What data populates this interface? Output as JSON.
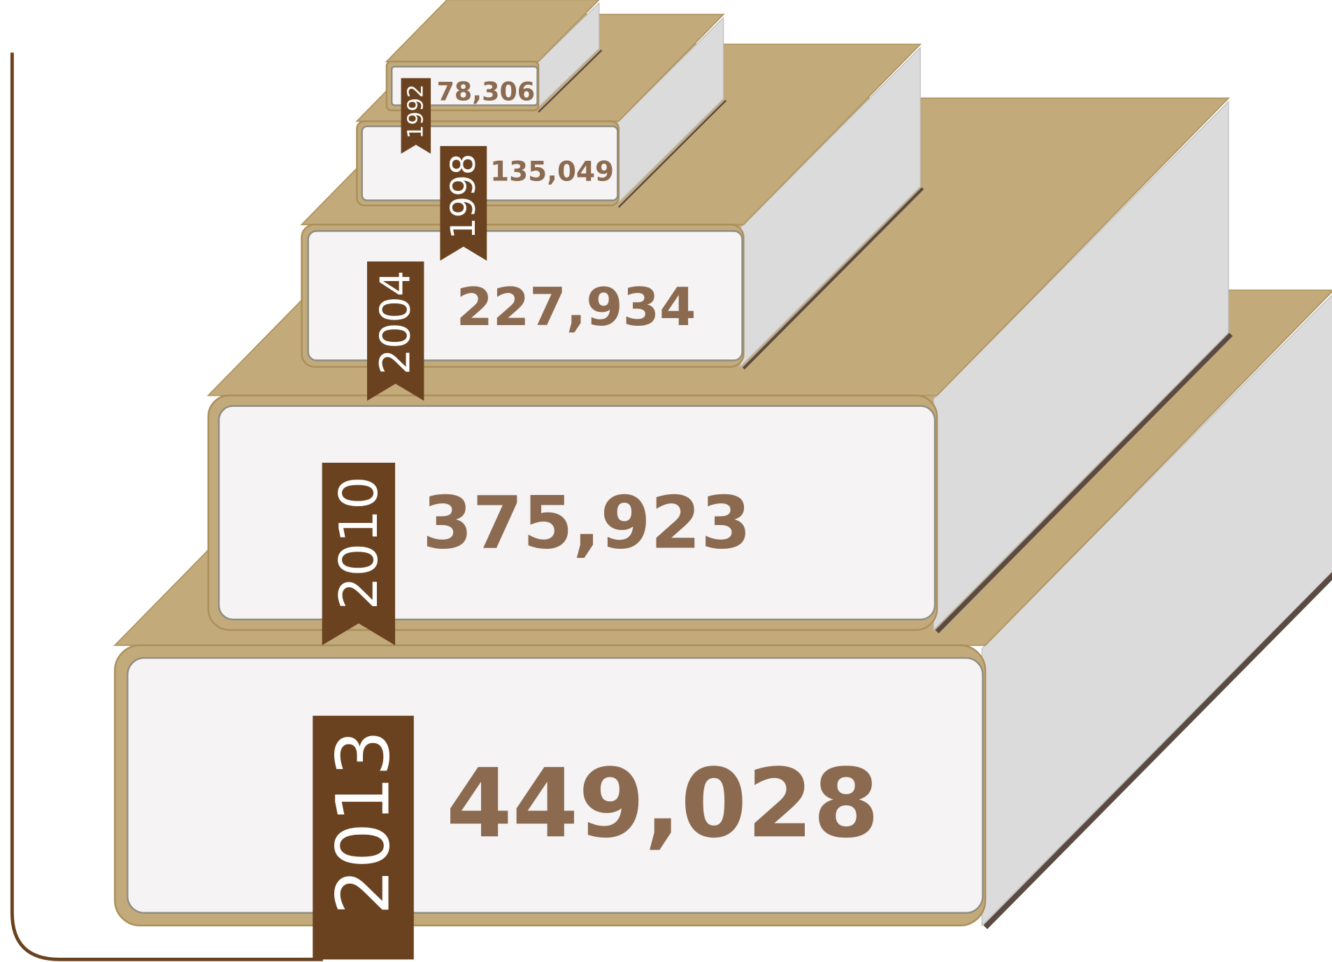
{
  "chart_data": {
    "type": "book-stack",
    "categories": [
      "1992",
      "1998",
      "2004",
      "2010",
      "2013"
    ],
    "values": [
      78306,
      135049,
      227934,
      375923,
      449028
    ],
    "value_labels": [
      "78,306",
      "135,049",
      "227,934",
      "375,923",
      "449,028"
    ],
    "colors": {
      "cover": "#c3aa7b",
      "ribbon": "#6b421f",
      "label": "#8b6a50"
    }
  }
}
